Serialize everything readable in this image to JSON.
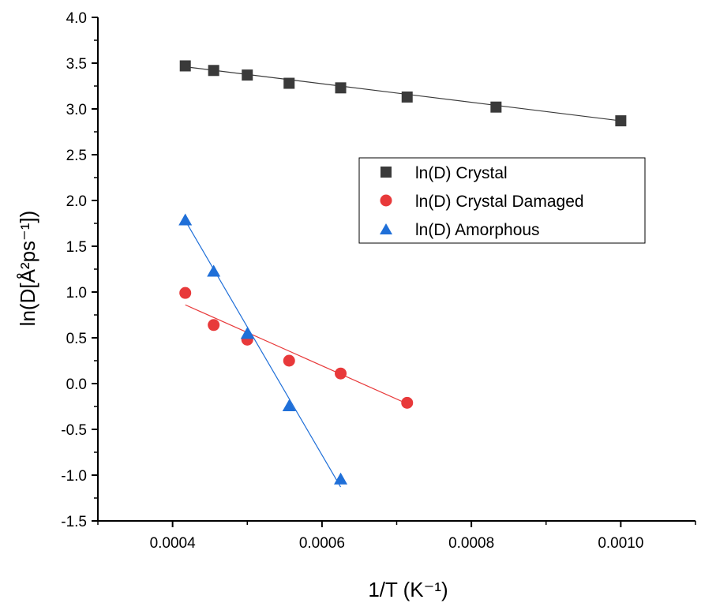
{
  "chart_data": {
    "type": "scatter",
    "xlabel": "1/T (K⁻¹)",
    "ylabel": "ln(D[Å²ps⁻¹])",
    "xlim": [
      0.0003,
      0.0011
    ],
    "ylim": [
      -1.5,
      4.0
    ],
    "x_ticks": [
      {
        "value": 0.0004,
        "label": "0.0004"
      },
      {
        "value": 0.0006,
        "label": "0.0006"
      },
      {
        "value": 0.0008,
        "label": "0.0008"
      },
      {
        "value": 0.001,
        "label": "0.0010"
      }
    ],
    "y_ticks": [
      {
        "value": 4.0,
        "label": "4.0"
      },
      {
        "value": 3.5,
        "label": "3.5"
      },
      {
        "value": 3.0,
        "label": "3.0"
      },
      {
        "value": 2.5,
        "label": "2.5"
      },
      {
        "value": 2.0,
        "label": "2.0"
      },
      {
        "value": 1.5,
        "label": "1.5"
      },
      {
        "value": 1.0,
        "label": "1.0"
      },
      {
        "value": 0.5,
        "label": "0.5"
      },
      {
        "value": 0.0,
        "label": "0.0"
      },
      {
        "value": -0.5,
        "label": "-0.5"
      },
      {
        "value": -1.0,
        "label": "-1.0"
      },
      {
        "value": -1.5,
        "label": "-1.5"
      }
    ],
    "grid": false,
    "legend_position": "right-center",
    "series": [
      {
        "name": "ln(D) Crystal",
        "marker": "square",
        "color": "#3a3a3a",
        "fit_color": "#3a3a3a",
        "x": [
          0.000417,
          0.000455,
          0.0005,
          0.000556,
          0.000625,
          0.000714,
          0.000833,
          0.001
        ],
        "y": [
          3.47,
          3.42,
          3.37,
          3.28,
          3.23,
          3.13,
          3.02,
          2.87
        ],
        "fit": {
          "x": [
            0.000417,
            0.001
          ],
          "y": [
            3.46,
            2.87
          ]
        }
      },
      {
        "name": "ln(D) Crystal Damaged",
        "marker": "circle",
        "color": "#e8393a",
        "fit_color": "#e8393a",
        "x": [
          0.000417,
          0.000455,
          0.0005,
          0.000556,
          0.000625,
          0.000714
        ],
        "y": [
          0.99,
          0.64,
          0.48,
          0.25,
          0.11,
          -0.21
        ],
        "fit": {
          "x": [
            0.000417,
            0.000714
          ],
          "y": [
            0.86,
            -0.22
          ]
        }
      },
      {
        "name": "ln(D) Amorphous",
        "marker": "triangle",
        "color": "#1f6fd8",
        "fit_color": "#1f6fd8",
        "x": [
          0.000417,
          0.000455,
          0.0005,
          0.000556,
          0.000625
        ],
        "y": [
          1.78,
          1.22,
          0.54,
          -0.25,
          -1.05
        ],
        "fit": {
          "x": [
            0.000417,
            0.000625
          ],
          "y": [
            1.78,
            -1.13
          ]
        }
      }
    ]
  }
}
